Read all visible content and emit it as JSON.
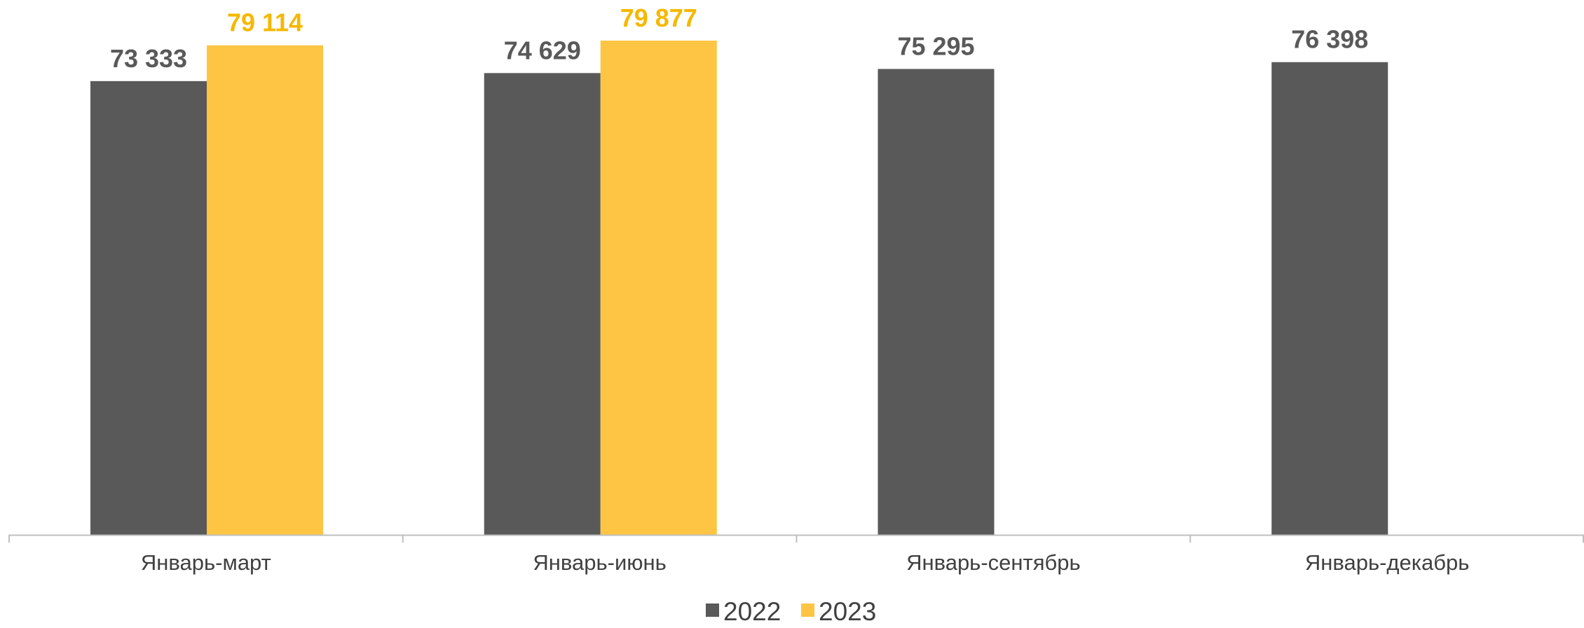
{
  "chart_data": {
    "type": "bar",
    "title": "",
    "xlabel": "",
    "ylabel": "",
    "ylim": [
      0,
      80000
    ],
    "grid": false,
    "legend_position": "bottom",
    "categories": [
      "Январь-март",
      "Январь-июнь",
      "Январь-сентябрь",
      "Январь-декабрь"
    ],
    "series": [
      {
        "name": "2022",
        "color": "#595959",
        "label_color": "#595959",
        "values": [
          73333,
          74629,
          75295,
          76398
        ],
        "labels": [
          "73 333",
          "74 629",
          "75 295",
          "76 398"
        ]
      },
      {
        "name": "2023",
        "color": "#FDC543",
        "label_color": "#F5B800",
        "values": [
          79114,
          79877,
          null,
          null
        ],
        "labels": [
          "79 114",
          "79 877",
          "",
          ""
        ]
      }
    ]
  }
}
